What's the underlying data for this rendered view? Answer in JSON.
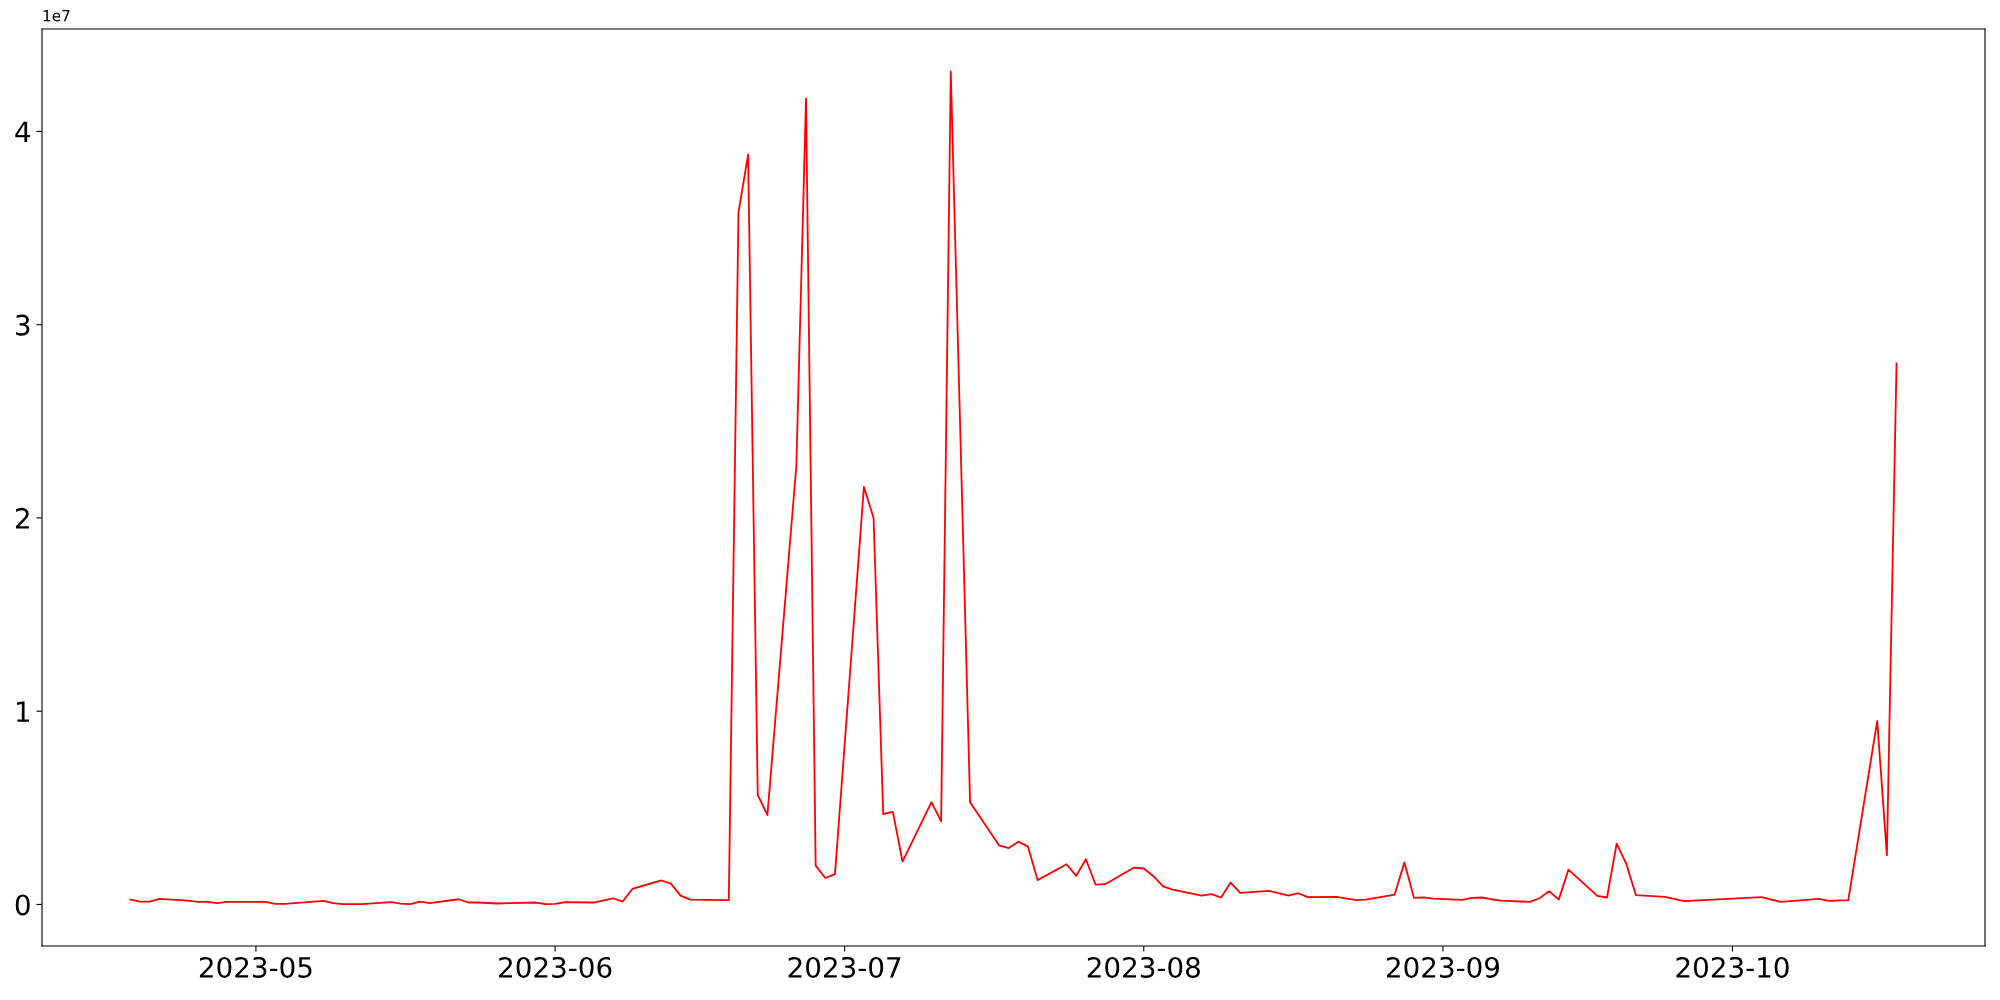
{
  "chart_data": {
    "type": "line",
    "annotations": [
      "1e7"
    ],
    "x": [
      "2023-04-18",
      "2023-04-19",
      "2023-04-20",
      "2023-04-21",
      "2023-04-24",
      "2023-04-25",
      "2023-04-26",
      "2023-04-27",
      "2023-04-28",
      "2023-05-02",
      "2023-05-03",
      "2023-05-04",
      "2023-05-08",
      "2023-05-09",
      "2023-05-10",
      "2023-05-12",
      "2023-05-15",
      "2023-05-16",
      "2023-05-17",
      "2023-05-18",
      "2023-05-19",
      "2023-05-22",
      "2023-05-23",
      "2023-05-24",
      "2023-05-26",
      "2023-05-30",
      "2023-05-31",
      "2023-06-01",
      "2023-06-02",
      "2023-06-05",
      "2023-06-07",
      "2023-06-08",
      "2023-06-09",
      "2023-06-12",
      "2023-06-13",
      "2023-06-14",
      "2023-06-15",
      "2023-06-19",
      "2023-06-20",
      "2023-06-21",
      "2023-06-22",
      "2023-06-23",
      "2023-06-26",
      "2023-06-27",
      "2023-06-28",
      "2023-06-29",
      "2023-06-30",
      "2023-07-03",
      "2023-07-04",
      "2023-07-05",
      "2023-07-06",
      "2023-07-07",
      "2023-07-10",
      "2023-07-11",
      "2023-07-12",
      "2023-07-14",
      "2023-07-17",
      "2023-07-18",
      "2023-07-19",
      "2023-07-20",
      "2023-07-21",
      "2023-07-24",
      "2023-07-25",
      "2023-07-26",
      "2023-07-27",
      "2023-07-28",
      "2023-07-31",
      "2023-08-01",
      "2023-08-02",
      "2023-08-03",
      "2023-08-04",
      "2023-08-07",
      "2023-08-08",
      "2023-08-09",
      "2023-08-10",
      "2023-08-11",
      "2023-08-14",
      "2023-08-16",
      "2023-08-17",
      "2023-08-18",
      "2023-08-21",
      "2023-08-23",
      "2023-08-24",
      "2023-08-27",
      "2023-08-28",
      "2023-08-29",
      "2023-08-30",
      "2023-08-31",
      "2023-09-03",
      "2023-09-04",
      "2023-09-05",
      "2023-09-06",
      "2023-09-07",
      "2023-09-10",
      "2023-09-11",
      "2023-09-12",
      "2023-09-13",
      "2023-09-14",
      "2023-09-17",
      "2023-09-18",
      "2023-09-19",
      "2023-09-20",
      "2023-09-21",
      "2023-09-24",
      "2023-09-26",
      "2023-10-04",
      "2023-10-06",
      "2023-10-10",
      "2023-10-11",
      "2023-10-13",
      "2023-10-16",
      "2023-10-17",
      "2023-10-18"
    ],
    "series": [
      {
        "color": "#ff0000",
        "values": [
          0.025,
          0.015,
          0.015,
          0.029,
          0.02,
          0.013,
          0.013,
          0.007,
          0.013,
          0.013,
          0.003,
          0.003,
          0.018,
          0.007,
          0.002,
          0.002,
          0.012,
          0.004,
          0.002,
          0.015,
          0.007,
          0.027,
          0.01,
          0.01,
          0.005,
          0.01,
          0.002,
          0.003,
          0.012,
          0.01,
          0.032,
          0.015,
          0.08,
          0.124,
          0.108,
          0.046,
          0.025,
          0.022,
          3.58,
          3.88,
          0.566,
          0.463,
          2.27,
          4.17,
          0.201,
          0.137,
          0.157,
          2.16,
          2.0,
          0.468,
          0.479,
          0.222,
          0.529,
          0.43,
          4.31,
          0.529,
          0.306,
          0.292,
          0.325,
          0.299,
          0.126,
          0.208,
          0.148,
          0.234,
          0.103,
          0.105,
          0.191,
          0.186,
          0.146,
          0.093,
          0.077,
          0.046,
          0.053,
          0.036,
          0.113,
          0.06,
          0.07,
          0.046,
          0.058,
          0.038,
          0.039,
          0.022,
          0.025,
          0.051,
          0.217,
          0.034,
          0.037,
          0.03,
          0.024,
          0.034,
          0.036,
          0.027,
          0.02,
          0.013,
          0.032,
          0.069,
          0.025,
          0.18,
          0.044,
          0.036,
          0.315,
          0.21,
          0.048,
          0.039,
          0.017,
          0.038,
          0.013,
          0.029,
          0.019,
          0.022,
          0.95,
          0.255,
          2.8
        ]
      }
    ],
    "xlim": [
      "2023-04-08T20:00",
      "2023-10-27T04:00"
    ],
    "xticks": [
      {
        "value": "2023-05-01",
        "label": "2023-05"
      },
      {
        "value": "2023-06-01",
        "label": "2023-06"
      },
      {
        "value": "2023-07-01",
        "label": "2023-07"
      },
      {
        "value": "2023-08-01",
        "label": "2023-08"
      },
      {
        "value": "2023-09-01",
        "label": "2023-09"
      },
      {
        "value": "2023-10-01",
        "label": "2023-10"
      }
    ],
    "ylim": [
      -0.215,
      4.53
    ],
    "yticks": [
      0,
      1,
      2,
      3,
      4
    ],
    "grid": false,
    "legend": false,
    "marker": "none",
    "line_style": "solid"
  }
}
